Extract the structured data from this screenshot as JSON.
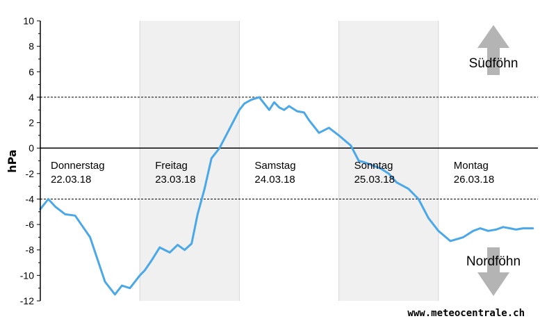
{
  "chart_data": {
    "type": "line",
    "title": "",
    "xlabel": "",
    "ylabel": "hPa",
    "ylim": [
      -12,
      10
    ],
    "yticks": [
      10,
      8,
      6,
      4,
      2,
      0,
      -2,
      -4,
      -6,
      -8,
      -10,
      -12
    ],
    "reference_lines": {
      "solid": [
        0
      ],
      "dotted": [
        4,
        -4
      ]
    },
    "days": [
      {
        "name": "Donnerstag",
        "date": "22.03.18",
        "shaded": false
      },
      {
        "name": "Freitag",
        "date": "23.03.18",
        "shaded": true
      },
      {
        "name": "Samstag",
        "date": "24.03.18",
        "shaded": false
      },
      {
        "name": "Sonntag",
        "date": "25.03.18",
        "shaded": true
      },
      {
        "name": "Montag",
        "date": "26.03.18",
        "shaded": false
      }
    ],
    "annotations": {
      "upper": "Südföhn",
      "lower": "Nordföhn"
    },
    "colors": {
      "line": "#4aa8e8",
      "shade": "#f0f0f0",
      "arrow": "#b4b4b4"
    },
    "series": [
      {
        "x_days": [
          0,
          0.08,
          0.15,
          0.25,
          0.35,
          0.5,
          0.65,
          0.75,
          0.82,
          0.9,
          1.0,
          1.05,
          1.12,
          1.2,
          1.3,
          1.38,
          1.45,
          1.52,
          1.58,
          1.65,
          1.72,
          1.8,
          1.9,
          2.0,
          2.05,
          2.12,
          2.2,
          2.3,
          2.35,
          2.4,
          2.45,
          2.5,
          2.58,
          2.65,
          2.7,
          2.8,
          2.9,
          3.0,
          3.12,
          3.2,
          3.25,
          3.32,
          3.42,
          3.5,
          3.58,
          3.7,
          3.8,
          3.9,
          4.0,
          4.12,
          4.25,
          4.35,
          4.42,
          4.5,
          4.58,
          4.65,
          4.72,
          4.78,
          4.85,
          4.95
        ],
        "y": [
          -4.8,
          -4.0,
          -4.6,
          -5.2,
          -5.3,
          -7.0,
          -10.5,
          -11.5,
          -10.8,
          -11.0,
          -10.0,
          -9.6,
          -8.8,
          -7.8,
          -8.2,
          -7.6,
          -8.0,
          -7.5,
          -5.2,
          -3.2,
          -0.8,
          0.0,
          1.5,
          3.0,
          3.5,
          3.8,
          4.0,
          3.0,
          3.6,
          3.2,
          3.0,
          3.3,
          2.9,
          2.8,
          2.2,
          1.2,
          1.6,
          1.0,
          0.2,
          -1.0,
          -1.1,
          -1.3,
          -1.6,
          -2.0,
          -2.7,
          -3.2,
          -4.0,
          -5.5,
          -6.5,
          -7.3,
          -7.0,
          -6.5,
          -6.3,
          -6.5,
          -6.4,
          -6.2,
          -6.3,
          -6.4,
          -6.3,
          -6.3
        ]
      }
    ]
  },
  "source": "www.meteocentrale.ch"
}
